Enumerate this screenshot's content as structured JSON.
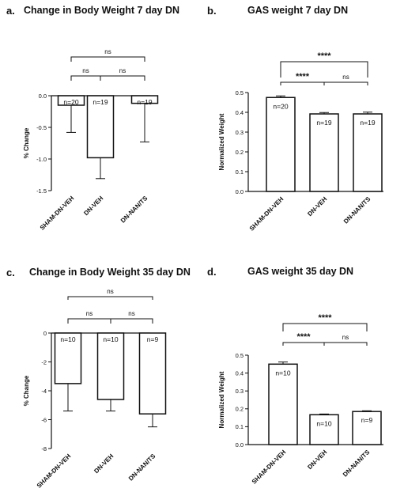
{
  "panels": [
    {
      "letter": "a.",
      "title": "Change in Body Weight 7 day  DN"
    },
    {
      "letter": "b.",
      "title": "GAS weight 7 day DN"
    },
    {
      "letter": "c.",
      "title": "Change in Body Weight 35 day DN"
    },
    {
      "letter": "d.",
      "title": "GAS weight 35 day DN"
    }
  ],
  "chart_data": [
    {
      "type": "bar",
      "title": "Change in Body Weight 7 day  DN",
      "ylabel": "% Change",
      "categories": [
        "SHAM-DN-VEH",
        "DN-VEH",
        "DN-NAN/TS"
      ],
      "values": [
        -0.15,
        -0.98,
        -0.12
      ],
      "error": [
        0.43,
        0.33,
        0.61
      ],
      "n_labels": [
        "n=20",
        "n=19",
        "n=19"
      ],
      "ylim": [
        -1.5,
        0.0
      ],
      "yticks": [
        0.0,
        -0.5,
        -1.0,
        -1.5
      ],
      "ytick_labels": [
        "0.0",
        "-0.5",
        "-1.0",
        "-1.5"
      ],
      "significance": [
        {
          "from": 0,
          "to": 2,
          "label": "ns"
        },
        {
          "from": 0,
          "to": 1,
          "label": "ns"
        },
        {
          "from": 1,
          "to": 2,
          "label": "ns"
        }
      ]
    },
    {
      "type": "bar",
      "title": "GAS weight 7 day DN",
      "ylabel": "Normalized Weight",
      "categories": [
        "SHAM-DN-VEH",
        "DN-VEH",
        "DN-NAN/TS"
      ],
      "values": [
        0.475,
        0.392,
        0.392
      ],
      "error": [
        0.008,
        0.007,
        0.009
      ],
      "n_labels": [
        "n=20",
        "n=19",
        "n=19"
      ],
      "ylim": [
        0.0,
        0.5
      ],
      "yticks": [
        0.0,
        0.1,
        0.2,
        0.3,
        0.4,
        0.5
      ],
      "ytick_labels": [
        "0.0",
        "0.1",
        "0.2",
        "0.3",
        "0.4",
        "0.5"
      ],
      "significance": [
        {
          "from": 0,
          "to": 2,
          "label": "****"
        },
        {
          "from": 0,
          "to": 1,
          "label": "****"
        },
        {
          "from": 1,
          "to": 2,
          "label": "ns"
        }
      ]
    },
    {
      "type": "bar",
      "title": "Change in Body Weight 35 day DN",
      "ylabel": "% Change",
      "categories": [
        "SHAM-DN-VEH",
        "DN-VEH",
        "DN-NAN/TS"
      ],
      "values": [
        -3.5,
        -4.6,
        -5.6
      ],
      "error": [
        1.9,
        0.8,
        0.9
      ],
      "n_labels": [
        "n=10",
        "n=10",
        "n=9"
      ],
      "ylim": [
        -8,
        0
      ],
      "yticks": [
        0,
        -2,
        -4,
        -6,
        -8
      ],
      "ytick_labels": [
        "0",
        "-2",
        "-4",
        "-6",
        "-8"
      ],
      "significance": [
        {
          "from": 0,
          "to": 2,
          "label": "ns"
        },
        {
          "from": 0,
          "to": 1,
          "label": "ns"
        },
        {
          "from": 1,
          "to": 2,
          "label": "ns"
        }
      ]
    },
    {
      "type": "bar",
      "title": "GAS weight 35 day DN",
      "ylabel": "Normalized Weight",
      "categories": [
        "SHAM-DN-VEH",
        "DN-VEH",
        "DN-NAN/TS"
      ],
      "values": [
        0.45,
        0.167,
        0.185
      ],
      "error": [
        0.012,
        0.004,
        0.004
      ],
      "n_labels": [
        "n=10",
        "n=10",
        "n=9"
      ],
      "ylim": [
        0.0,
        0.5
      ],
      "yticks": [
        0.0,
        0.1,
        0.2,
        0.3,
        0.4,
        0.5
      ],
      "ytick_labels": [
        "0.0",
        "0.1",
        "0.2",
        "0.3",
        "0.4",
        "0.5"
      ],
      "significance": [
        {
          "from": 0,
          "to": 2,
          "label": "****"
        },
        {
          "from": 0,
          "to": 1,
          "label": "****"
        },
        {
          "from": 1,
          "to": 2,
          "label": "ns"
        }
      ]
    }
  ]
}
